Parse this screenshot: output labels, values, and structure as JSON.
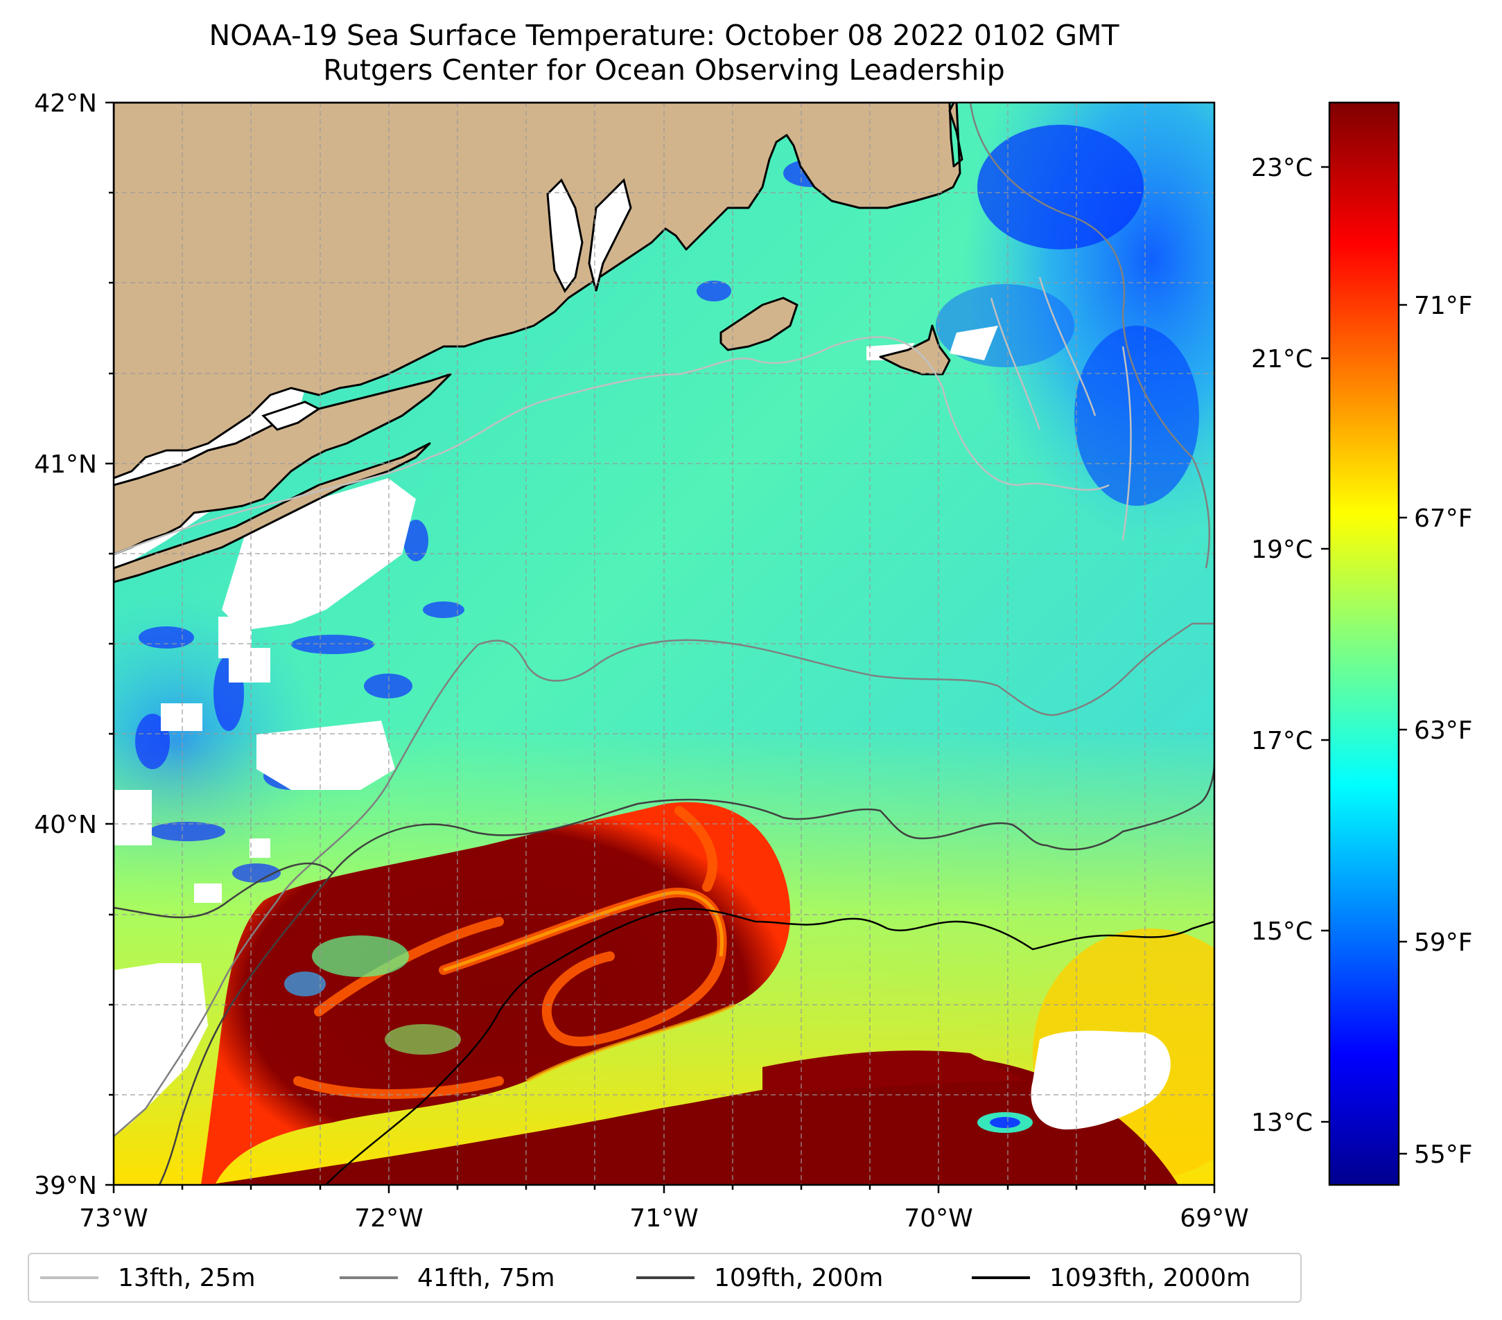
{
  "title": {
    "line1": "NOAA-19 Sea Surface Temperature: October 08 2022 0102 GMT",
    "line2": "Rutgers Center for Ocean Observing Leadership"
  },
  "map": {
    "lon_range": [
      -73,
      -69
    ],
    "lat_range": [
      39,
      42
    ],
    "lon_ticks": [
      "73°W",
      "72°W",
      "71°W",
      "70°W",
      "69°W"
    ],
    "lat_ticks": [
      "39°N",
      "40°N",
      "41°N",
      "42°N"
    ],
    "gridlines": true,
    "land_color": "#d2b48c",
    "no_data_color": "#ffffff"
  },
  "colorbar": {
    "colormap": "jet",
    "celsius_ticks": [
      "13°C",
      "15°C",
      "17°C",
      "19°C",
      "21°C",
      "23°C"
    ],
    "fahrenheit_ticks": [
      "55°F",
      "59°F",
      "63°F",
      "67°F",
      "71°F"
    ],
    "range_c": [
      12.0,
      23.6
    ]
  },
  "legend": {
    "items": [
      {
        "label": "13fth, 25m",
        "color": "#c0c0c0"
      },
      {
        "label": "41fth, 75m",
        "color": "#808080"
      },
      {
        "label": "109fth, 200m",
        "color": "#404040"
      },
      {
        "label": "1093fth, 2000m",
        "color": "#000000"
      }
    ]
  }
}
